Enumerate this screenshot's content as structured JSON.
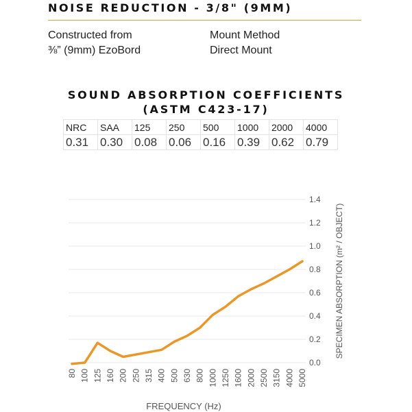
{
  "header": {
    "title": "NOISE  REDUCTION - 3/8\" (9MM)"
  },
  "specs": {
    "constructed_label": "Constructed from",
    "constructed_value": "⅜” (9mm) EzoBord",
    "mount_label": "Mount Method",
    "mount_value": "Direct Mount"
  },
  "coefficients": {
    "title_line1": "SOUND ABSORPTION COEFFICIENTS",
    "title_line2": "(ASTM C423-17)",
    "headers": [
      "NRC",
      "SAA",
      "125",
      "250",
      "500",
      "1000",
      "2000",
      "4000"
    ],
    "values": [
      "0.31",
      "0.30",
      "0.08",
      "0.06",
      "0.16",
      "0.39",
      "0.62",
      "0.79"
    ]
  },
  "chart_data": {
    "type": "line",
    "title": "",
    "xlabel": "FREQUENCY (Hz)",
    "ylabel": "SPECIMEN ABSORPTION (m² / OBJECT)",
    "categories": [
      "80",
      "100",
      "125",
      "160",
      "200",
      "250",
      "315",
      "400",
      "500",
      "630",
      "800",
      "1000",
      "1250",
      "1600",
      "2000",
      "2500",
      "3150",
      "4000",
      "5000"
    ],
    "series": [
      {
        "values": [
          -0.01,
          0.0,
          0.17,
          0.1,
          0.05,
          0.07,
          0.09,
          0.11,
          0.18,
          0.23,
          0.3,
          0.41,
          0.48,
          0.57,
          0.63,
          0.68,
          0.74,
          0.8,
          0.87
        ],
        "color": "#e8982b"
      }
    ],
    "y_ticks": [
      "0.0",
      "0.2",
      "0.4",
      "0.6",
      "0.8",
      "1.0",
      "1.2",
      "1.4"
    ],
    "ylim": [
      0,
      1.4
    ],
    "y_axis_side": "right",
    "grid": true,
    "grid_color": "#e8e8e8"
  }
}
